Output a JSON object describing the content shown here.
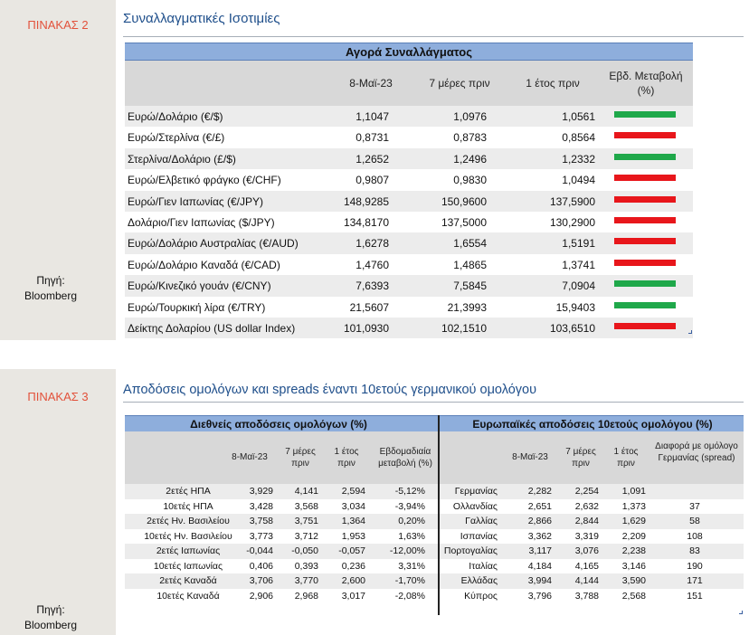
{
  "panel1": {
    "label": "ΠΙΝΑΚΑΣ 2",
    "title": "Συναλλαγματικές Ισοτιμίες",
    "source_label": "Πηγή:",
    "source_name": "Bloomberg",
    "band": "Αγορά Συναλλάγματος",
    "headers": [
      "8-Μαϊ-23",
      "7 μέρες πριν",
      "1 έτος πριν",
      "Εβδ. Μεταβολή (%)"
    ],
    "rows": [
      {
        "name": "Ευρώ/Δολάριο (€/$)",
        "v1": "1,1047",
        "v2": "1,0976",
        "v3": "1,0561",
        "change": "up"
      },
      {
        "name": "Ευρώ/Στερλίνα (€/£)",
        "v1": "0,8731",
        "v2": "0,8783",
        "v3": "0,8564",
        "change": "down"
      },
      {
        "name": "Στερλίνα/Δολάριο (£/$)",
        "v1": "1,2652",
        "v2": "1,2496",
        "v3": "1,2332",
        "change": "up"
      },
      {
        "name": "Ευρώ/Ελβετικό φράγκο (€/CHF)",
        "v1": "0,9807",
        "v2": "0,9830",
        "v3": "1,0494",
        "change": "down"
      },
      {
        "name": "Ευρώ/Γιεν Ιαπωνίας (€/JPY)",
        "v1": "148,9285",
        "v2": "150,9600",
        "v3": "137,5900",
        "change": "down"
      },
      {
        "name": "Δολάριο/Γιεν Ιαπωνίας ($/JPY)",
        "v1": "134,8170",
        "v2": "137,5000",
        "v3": "130,2900",
        "change": "down"
      },
      {
        "name": "Ευρώ/Δολάριο Αυστραλίας (€/AUD)",
        "v1": "1,6278",
        "v2": "1,6554",
        "v3": "1,5191",
        "change": "down"
      },
      {
        "name": "Ευρώ/Δολάριο Καναδά (€/CAD)",
        "v1": "1,4760",
        "v2": "1,4865",
        "v3": "1,3741",
        "change": "down"
      },
      {
        "name": "Ευρώ/Κινεζικό γουάν (€/CNY)",
        "v1": "7,6393",
        "v2": "7,5845",
        "v3": "7,0904",
        "change": "up"
      },
      {
        "name": "Ευρώ/Τουρκική λίρα (€/TRY)",
        "v1": "21,5607",
        "v2": "21,3993",
        "v3": "15,9403",
        "change": "up"
      },
      {
        "name": "Δείκτης Δολαρίου (US dollar Index)",
        "v1": "101,0930",
        "v2": "102,1510",
        "v3": "103,6510",
        "change": "down"
      }
    ],
    "colors": {
      "up": "#1fa84a",
      "down": "#e8161b"
    }
  },
  "panel2": {
    "label": "ΠΙΝΑΚΑΣ 3",
    "title": "Αποδόσεις ομολόγων και spreads έναντι 10ετούς γερμανικού ομολόγου",
    "source_label": "Πηγή:",
    "source_name": "Bloomberg",
    "band_left": "Διεθνείς αποδόσεις ομολόγων (%)",
    "band_right": "Ευρωπαϊκές αποδόσεις 10ετούς ομολόγου (%)",
    "headers_left": [
      "8-Μαϊ-23",
      "7 μέρες πριν",
      "1 έτος πριν",
      "Εβδομαδιαία μεταβολή (%)"
    ],
    "headers_right": [
      "8-Μαϊ-23",
      "7 μέρες πριν",
      "1 έτος πριν",
      "Διαφορά με ομόλογο Γερμανίας (spread)"
    ],
    "rows": [
      {
        "n1": "2ετές ΗΠΑ",
        "a": "3,929",
        "b": "4,141",
        "c": "2,594",
        "d": "-5,12%",
        "n2": "Γερμανίας",
        "e": "2,282",
        "f": "2,254",
        "g": "1,091",
        "s": ""
      },
      {
        "n1": "10ετές ΗΠΑ",
        "a": "3,428",
        "b": "3,568",
        "c": "3,034",
        "d": "-3,94%",
        "n2": "Ολλανδίας",
        "e": "2,651",
        "f": "2,632",
        "g": "1,373",
        "s": "37"
      },
      {
        "n1": "2ετές Ην. Βασιλείου",
        "a": "3,758",
        "b": "3,751",
        "c": "1,364",
        "d": "0,20%",
        "n2": "Γαλλίας",
        "e": "2,866",
        "f": "2,844",
        "g": "1,629",
        "s": "58"
      },
      {
        "n1": "10ετές Ην. Βασιλείου",
        "a": "3,773",
        "b": "3,712",
        "c": "1,953",
        "d": "1,63%",
        "n2": "Ισπανίας",
        "e": "3,362",
        "f": "3,319",
        "g": "2,209",
        "s": "108"
      },
      {
        "n1": "2ετές Ιαπωνίας",
        "a": "-0,044",
        "b": "-0,050",
        "c": "-0,057",
        "d": "-12,00%",
        "n2": "Πορτογαλίας",
        "e": "3,117",
        "f": "3,076",
        "g": "2,238",
        "s": "83"
      },
      {
        "n1": "10ετές Ιαπωνίας",
        "a": "0,406",
        "b": "0,393",
        "c": "0,236",
        "d": "3,31%",
        "n2": "Ιταλίας",
        "e": "4,184",
        "f": "4,165",
        "g": "3,146",
        "s": "190"
      },
      {
        "n1": "2ετές Καναδά",
        "a": "3,706",
        "b": "3,770",
        "c": "2,600",
        "d": "-1,70%",
        "n2": "Ελλάδας",
        "e": "3,994",
        "f": "4,144",
        "g": "3,590",
        "s": "171"
      },
      {
        "n1": "10ετές Καναδά",
        "a": "2,906",
        "b": "2,968",
        "c": "3,017",
        "d": "-2,08%",
        "n2": "Κύπρος",
        "e": "3,796",
        "f": "3,788",
        "g": "2,568",
        "s": "151"
      }
    ]
  }
}
